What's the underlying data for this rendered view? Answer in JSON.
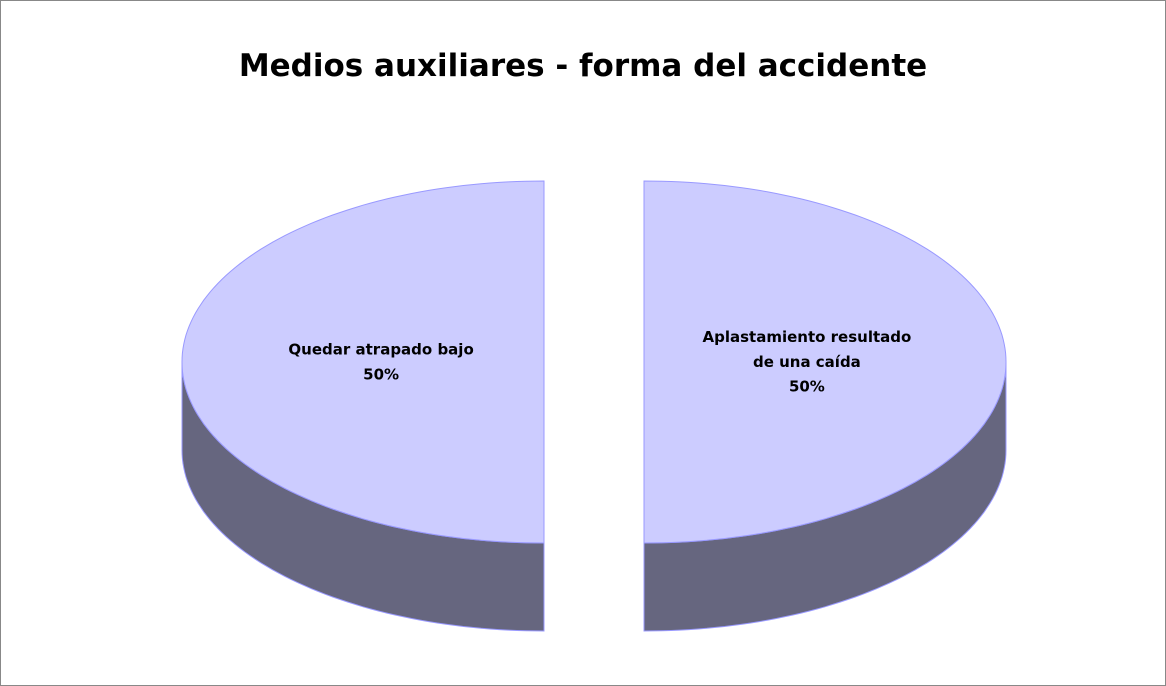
{
  "chart_data": {
    "type": "pie",
    "title": "Medios auxiliares - forma del accidente",
    "categories": [
      "Aplastamiento resultado de una caída",
      "Quedar atrapado bajo"
    ],
    "values": [
      50,
      50
    ],
    "value_labels": [
      "50%",
      "50%"
    ],
    "color": "#ccccff",
    "side_color": "#66667f",
    "edge_color": "#9999ff"
  }
}
